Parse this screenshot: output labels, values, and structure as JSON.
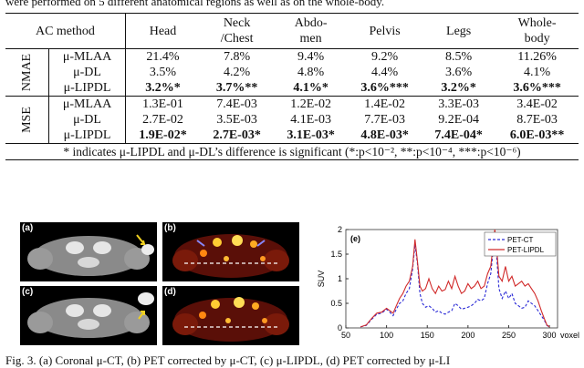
{
  "caption_top": "were performed on 5 different anatomical regions as well as on the whole-body.",
  "table": {
    "corner": "AC method",
    "columns": [
      {
        "line1": "Head",
        "line2": ""
      },
      {
        "line1": "Neck",
        "line2": "/Chest"
      },
      {
        "line1": "Abdo-",
        "line2": "men"
      },
      {
        "line1": "Pelvis",
        "line2": ""
      },
      {
        "line1": "Legs",
        "line2": ""
      },
      {
        "line1": "Whole-",
        "line2": "body"
      }
    ],
    "groups": [
      {
        "label": "NMAE",
        "rows": [
          {
            "method": "μ-MLAA",
            "bold": false,
            "cells": [
              "21.4%",
              "7.8%",
              "9.4%",
              "9.2%",
              "8.5%",
              "11.26%"
            ]
          },
          {
            "method": "μ-DL",
            "bold": false,
            "cells": [
              "3.5%",
              "4.2%",
              "4.8%",
              "4.4%",
              "3.6%",
              "4.1%"
            ]
          },
          {
            "method": "μ-LIPDL",
            "bold": true,
            "cells": [
              "3.2%*",
              "3.7%**",
              "4.1%*",
              "3.6%***",
              "3.2%*",
              "3.6%***"
            ]
          }
        ]
      },
      {
        "label": "MSE",
        "rows": [
          {
            "method": "μ-MLAA",
            "bold": false,
            "cells": [
              "1.3E-01",
              "7.4E-03",
              "1.2E-02",
              "1.4E-02",
              "3.3E-03",
              "3.4E-02"
            ]
          },
          {
            "method": "μ-DL",
            "bold": false,
            "cells": [
              "2.7E-02",
              "3.5E-03",
              "4.1E-03",
              "7.7E-03",
              "9.2E-04",
              "8.7E-03"
            ]
          },
          {
            "method": "μ-LIPDL",
            "bold": true,
            "cells": [
              "1.9E-02*",
              "2.7E-03*",
              "3.1E-03*",
              "4.8E-03*",
              "7.4E-04*",
              "6.0E-03**"
            ]
          }
        ]
      }
    ],
    "note": "* indicates μ-LIPDL and μ-DL’s difference is significant (*:p<10⁻², **:p<10⁻⁴, ***:p<10⁻⁶)"
  },
  "panels": [
    {
      "label": "(a)",
      "kind": "ct"
    },
    {
      "label": "(b)",
      "kind": "pet"
    },
    {
      "label": "(c)",
      "kind": "ct"
    },
    {
      "label": "(d)",
      "kind": "pet"
    }
  ],
  "chart_data": {
    "type": "line",
    "panel_label": "(e)",
    "xlabel": "voxel",
    "ylabel": "SUV",
    "xlim": [
      50,
      310
    ],
    "ylim": [
      0,
      2
    ],
    "xticks": [
      50,
      100,
      150,
      200,
      250,
      300
    ],
    "yticks": [
      0,
      0.5,
      1,
      1.5,
      2
    ],
    "legend_position": "top-right",
    "series": [
      {
        "name": "PET-CT",
        "color": "#2b2bd6",
        "dash": true,
        "x": [
          68,
          75,
          82,
          88,
          94,
          100,
          104,
          108,
          112,
          116,
          120,
          124,
          128,
          132,
          135,
          138,
          141,
          144,
          148,
          152,
          156,
          160,
          164,
          168,
          172,
          176,
          180,
          184,
          188,
          192,
          196,
          200,
          204,
          208,
          212,
          216,
          220,
          224,
          228,
          231,
          233,
          235,
          238,
          242,
          246,
          250,
          254,
          258,
          262,
          266,
          270,
          274,
          278,
          282,
          286,
          290,
          294,
          297,
          300
        ],
        "values": [
          0.02,
          0.05,
          0.18,
          0.28,
          0.3,
          0.38,
          0.32,
          0.25,
          0.38,
          0.5,
          0.55,
          0.7,
          0.8,
          1.2,
          1.7,
          1.3,
          0.7,
          0.5,
          0.42,
          0.45,
          0.4,
          0.32,
          0.35,
          0.3,
          0.28,
          0.32,
          0.35,
          0.5,
          0.45,
          0.38,
          0.4,
          0.42,
          0.45,
          0.5,
          0.58,
          0.55,
          0.6,
          0.9,
          1.1,
          1.6,
          1.9,
          1.5,
          0.8,
          0.6,
          0.75,
          0.6,
          0.7,
          0.5,
          0.45,
          0.4,
          0.42,
          0.55,
          0.5,
          0.45,
          0.35,
          0.25,
          0.15,
          0.05,
          0.02
        ]
      },
      {
        "name": "PET-LIPDL",
        "color": "#d12a2a",
        "dash": false,
        "x": [
          68,
          75,
          82,
          88,
          94,
          100,
          104,
          108,
          112,
          116,
          120,
          124,
          128,
          132,
          135,
          138,
          141,
          144,
          148,
          152,
          156,
          160,
          164,
          168,
          172,
          176,
          180,
          184,
          188,
          192,
          196,
          200,
          204,
          208,
          212,
          216,
          220,
          224,
          228,
          231,
          233,
          235,
          238,
          242,
          246,
          250,
          254,
          258,
          262,
          266,
          270,
          274,
          278,
          282,
          286,
          290,
          294,
          297,
          300
        ],
        "values": [
          0.02,
          0.06,
          0.2,
          0.3,
          0.32,
          0.4,
          0.35,
          0.3,
          0.45,
          0.6,
          0.7,
          0.85,
          0.95,
          1.25,
          1.8,
          1.35,
          0.85,
          0.75,
          0.8,
          1.0,
          0.8,
          0.7,
          0.85,
          0.75,
          0.78,
          0.95,
          0.8,
          1.05,
          0.85,
          0.7,
          0.75,
          0.9,
          0.8,
          0.85,
          0.95,
          0.8,
          0.85,
          1.1,
          1.25,
          1.7,
          2.0,
          1.65,
          1.05,
          0.95,
          1.25,
          0.95,
          1.05,
          0.85,
          0.9,
          0.95,
          0.85,
          0.9,
          0.8,
          0.7,
          0.55,
          0.35,
          0.18,
          0.06,
          0.02
        ]
      }
    ]
  },
  "caption_bottom": "Fig. 3. (a) Coronal μ-CT, (b) PET corrected by μ-CT, (c) μ-LIPDL, (d) PET corrected by μ-LI"
}
